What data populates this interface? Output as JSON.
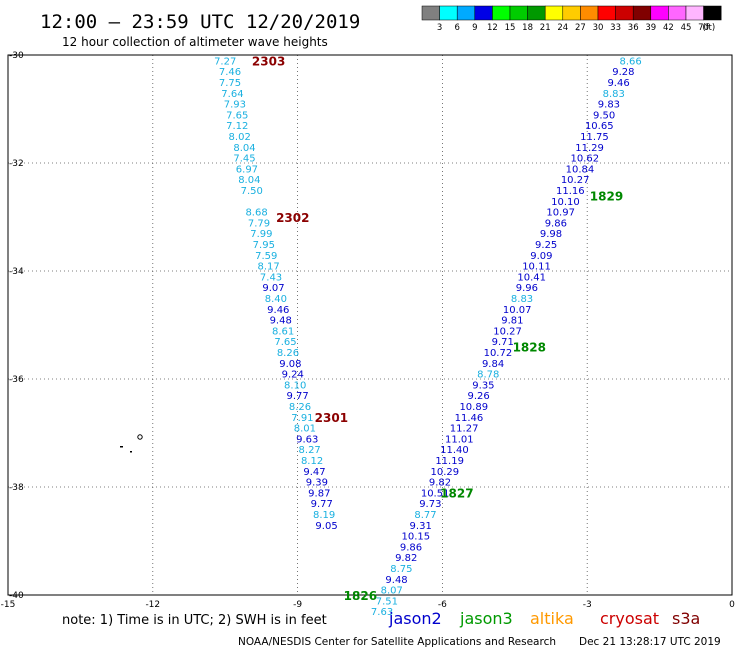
{
  "header": {
    "title": "12:00 – 23:59 UTC 12/20/2019",
    "subtitle": "12 hour collection of altimeter wave heights"
  },
  "colorbar": {
    "unit_label": "(ft)",
    "entries": [
      {
        "label": "3",
        "color": "#808080"
      },
      {
        "label": "6",
        "color": "#00ffff"
      },
      {
        "label": "9",
        "color": "#00aaff"
      },
      {
        "label": "12",
        "color": "#0000e6"
      },
      {
        "label": "15",
        "color": "#00ff00"
      },
      {
        "label": "18",
        "color": "#00cc00"
      },
      {
        "label": "21",
        "color": "#009900"
      },
      {
        "label": "24",
        "color": "#ffff00"
      },
      {
        "label": "27",
        "color": "#ffcc00"
      },
      {
        "label": "30",
        "color": "#ff8c00"
      },
      {
        "label": "33",
        "color": "#ff0000"
      },
      {
        "label": "36",
        "color": "#cc0000"
      },
      {
        "label": "39",
        "color": "#800000"
      },
      {
        "label": "42",
        "color": "#ff00ff"
      },
      {
        "label": "45",
        "color": "#ff66ff"
      },
      {
        "label": "70",
        "color": "#ffb6ff"
      },
      {
        "label": "",
        "color": "#000000"
      }
    ]
  },
  "legend": {
    "note": "note:  1) Time is in UTC;  2) SWH is in feet",
    "satellites": [
      {
        "name": "jason2",
        "color": "#0000cc"
      },
      {
        "name": "jason3",
        "color": "#009900"
      },
      {
        "name": "altika",
        "color": "#ff9900"
      },
      {
        "name": "cryosat",
        "color": "#cc0000"
      },
      {
        "name": "s3a",
        "color": "#800000"
      }
    ]
  },
  "footer": {
    "credit": "NOAA/NESDIS Center for Satellite Applications and Research",
    "timestamp": "Dec 21 13:28:17 UTC 2019"
  },
  "chart_data": {
    "type": "scatter",
    "title": "12:00 – 23:59 UTC 12/20/2019",
    "xlabel": "",
    "ylabel": "",
    "xlim": [
      -15,
      0
    ],
    "ylim": [
      -40,
      -30
    ],
    "x_ticks": [
      "-15",
      "-12",
      "-9",
      "-6",
      "-3",
      "0"
    ],
    "y_ticks": [
      "-30",
      "-32",
      "-34",
      "-36",
      "-38",
      "-40"
    ],
    "grid": true,
    "colors": {
      "light": "#1ab0e0",
      "dark": "#0000cc",
      "time_green": "#008800",
      "time_red": "#8b0000"
    },
    "tracks": [
      {
        "name": "s3a track",
        "points": [
          {
            "lat": -30.1,
            "lon": -10.5,
            "v": "7.27",
            "c": "light"
          },
          {
            "lat": -30.3,
            "lon": -10.4,
            "v": "7.46",
            "c": "light"
          },
          {
            "lat": -30.5,
            "lon": -10.4,
            "v": "7.75",
            "c": "light"
          },
          {
            "lat": -30.7,
            "lon": -10.35,
            "v": "7.64",
            "c": "light"
          },
          {
            "lat": -30.9,
            "lon": -10.3,
            "v": "7.93",
            "c": "light"
          },
          {
            "lat": -31.1,
            "lon": -10.25,
            "v": "7.65",
            "c": "light"
          },
          {
            "lat": -31.3,
            "lon": -10.25,
            "v": "7.12",
            "c": "light"
          },
          {
            "lat": -31.5,
            "lon": -10.2,
            "v": "8.02",
            "c": "light"
          },
          {
            "lat": -31.7,
            "lon": -10.1,
            "v": "8.04",
            "c": "light"
          },
          {
            "lat": -31.9,
            "lon": -10.1,
            "v": "7.45",
            "c": "light"
          },
          {
            "lat": -32.1,
            "lon": -10.05,
            "v": "6.97",
            "c": "light"
          },
          {
            "lat": -32.3,
            "lon": -10.0,
            "v": "8.04",
            "c": "light"
          },
          {
            "lat": -32.5,
            "lon": -9.95,
            "v": "7.50",
            "c": "light"
          },
          {
            "lat": -32.9,
            "lon": -9.85,
            "v": "8.68",
            "c": "light"
          },
          {
            "lat": -33.1,
            "lon": -9.8,
            "v": "7.79",
            "c": "light"
          },
          {
            "lat": -33.3,
            "lon": -9.75,
            "v": "7.99",
            "c": "light"
          },
          {
            "lat": -33.5,
            "lon": -9.7,
            "v": "7.95",
            "c": "light"
          },
          {
            "lat": -33.7,
            "lon": -9.65,
            "v": "7.59",
            "c": "light"
          },
          {
            "lat": -33.9,
            "lon": -9.6,
            "v": "8.17",
            "c": "light"
          },
          {
            "lat": -34.1,
            "lon": -9.55,
            "v": "7.43",
            "c": "light"
          },
          {
            "lat": -34.3,
            "lon": -9.5,
            "v": "9.07",
            "c": "dark"
          },
          {
            "lat": -34.5,
            "lon": -9.45,
            "v": "8.40",
            "c": "light"
          },
          {
            "lat": -34.7,
            "lon": -9.4,
            "v": "9.46",
            "c": "dark"
          },
          {
            "lat": -34.9,
            "lon": -9.35,
            "v": "9.48",
            "c": "dark"
          },
          {
            "lat": -35.1,
            "lon": -9.3,
            "v": "8.61",
            "c": "light"
          },
          {
            "lat": -35.3,
            "lon": -9.25,
            "v": "7.65",
            "c": "light"
          },
          {
            "lat": -35.5,
            "lon": -9.2,
            "v": "8.26",
            "c": "light"
          },
          {
            "lat": -35.7,
            "lon": -9.15,
            "v": "9.08",
            "c": "dark"
          },
          {
            "lat": -35.9,
            "lon": -9.1,
            "v": "9.24",
            "c": "dark"
          },
          {
            "lat": -36.1,
            "lon": -9.05,
            "v": "8.10",
            "c": "light"
          },
          {
            "lat": -36.3,
            "lon": -9.0,
            "v": "9.77",
            "c": "dark"
          },
          {
            "lat": -36.5,
            "lon": -8.95,
            "v": "8.26",
            "c": "light"
          },
          {
            "lat": -36.7,
            "lon": -8.9,
            "v": "7.91",
            "c": "light"
          },
          {
            "lat": -36.9,
            "lon": -8.85,
            "v": "8.01",
            "c": "light"
          },
          {
            "lat": -37.1,
            "lon": -8.8,
            "v": "9.63",
            "c": "dark"
          },
          {
            "lat": -37.3,
            "lon": -8.75,
            "v": "8.27",
            "c": "light"
          },
          {
            "lat": -37.5,
            "lon": -8.7,
            "v": "8.12",
            "c": "light"
          },
          {
            "lat": -37.7,
            "lon": -8.65,
            "v": "9.47",
            "c": "dark"
          },
          {
            "lat": -37.9,
            "lon": -8.6,
            "v": "9.39",
            "c": "dark"
          },
          {
            "lat": -38.1,
            "lon": -8.55,
            "v": "9.87",
            "c": "dark"
          },
          {
            "lat": -38.3,
            "lon": -8.5,
            "v": "9.77",
            "c": "dark"
          },
          {
            "lat": -38.5,
            "lon": -8.45,
            "v": "8.19",
            "c": "light"
          },
          {
            "lat": -38.7,
            "lon": -8.4,
            "v": "9.05",
            "c": "dark"
          }
        ]
      },
      {
        "name": "jason track",
        "points": [
          {
            "lat": -30.1,
            "lon": -2.1,
            "v": "8.66",
            "c": "light"
          },
          {
            "lat": -30.3,
            "lon": -2.25,
            "v": "9.28",
            "c": "dark"
          },
          {
            "lat": -30.5,
            "lon": -2.35,
            "v": "9.46",
            "c": "dark"
          },
          {
            "lat": -30.7,
            "lon": -2.45,
            "v": "8.83",
            "c": "light"
          },
          {
            "lat": -30.9,
            "lon": -2.55,
            "v": "9.83",
            "c": "dark"
          },
          {
            "lat": -31.1,
            "lon": -2.65,
            "v": "9.50",
            "c": "dark"
          },
          {
            "lat": -31.3,
            "lon": -2.75,
            "v": "10.65",
            "c": "dark"
          },
          {
            "lat": -31.5,
            "lon": -2.85,
            "v": "11.75",
            "c": "dark"
          },
          {
            "lat": -31.7,
            "lon": -2.95,
            "v": "11.29",
            "c": "dark"
          },
          {
            "lat": -31.9,
            "lon": -3.05,
            "v": "10.62",
            "c": "dark"
          },
          {
            "lat": -32.1,
            "lon": -3.15,
            "v": "10.84",
            "c": "dark"
          },
          {
            "lat": -32.3,
            "lon": -3.25,
            "v": "10.27",
            "c": "dark"
          },
          {
            "lat": -32.5,
            "lon": -3.35,
            "v": "11.16",
            "c": "dark"
          },
          {
            "lat": -32.7,
            "lon": -3.45,
            "v": "10.10",
            "c": "dark"
          },
          {
            "lat": -32.9,
            "lon": -3.55,
            "v": "10.97",
            "c": "dark"
          },
          {
            "lat": -33.1,
            "lon": -3.65,
            "v": "9.86",
            "c": "dark"
          },
          {
            "lat": -33.3,
            "lon": -3.75,
            "v": "9.98",
            "c": "dark"
          },
          {
            "lat": -33.5,
            "lon": -3.85,
            "v": "9.25",
            "c": "dark"
          },
          {
            "lat": -33.7,
            "lon": -3.95,
            "v": "9.09",
            "c": "dark"
          },
          {
            "lat": -33.9,
            "lon": -4.05,
            "v": "10.11",
            "c": "dark"
          },
          {
            "lat": -34.1,
            "lon": -4.15,
            "v": "10.41",
            "c": "dark"
          },
          {
            "lat": -34.3,
            "lon": -4.25,
            "v": "9.96",
            "c": "dark"
          },
          {
            "lat": -34.5,
            "lon": -4.35,
            "v": "8.83",
            "c": "light"
          },
          {
            "lat": -34.7,
            "lon": -4.45,
            "v": "10.07",
            "c": "dark"
          },
          {
            "lat": -34.9,
            "lon": -4.55,
            "v": "9.81",
            "c": "dark"
          },
          {
            "lat": -35.1,
            "lon": -4.65,
            "v": "10.27",
            "c": "dark"
          },
          {
            "lat": -35.3,
            "lon": -4.75,
            "v": "9.71",
            "c": "dark"
          },
          {
            "lat": -35.5,
            "lon": -4.85,
            "v": "10.72",
            "c": "dark"
          },
          {
            "lat": -35.7,
            "lon": -4.95,
            "v": "9.84",
            "c": "dark"
          },
          {
            "lat": -35.9,
            "lon": -5.05,
            "v": "8.78",
            "c": "light"
          },
          {
            "lat": -36.1,
            "lon": -5.15,
            "v": "9.35",
            "c": "dark"
          },
          {
            "lat": -36.3,
            "lon": -5.25,
            "v": "9.26",
            "c": "dark"
          },
          {
            "lat": -36.5,
            "lon": -5.35,
            "v": "10.89",
            "c": "dark"
          },
          {
            "lat": -36.7,
            "lon": -5.45,
            "v": "11.46",
            "c": "dark"
          },
          {
            "lat": -36.9,
            "lon": -5.55,
            "v": "11.27",
            "c": "dark"
          },
          {
            "lat": -37.1,
            "lon": -5.65,
            "v": "11.01",
            "c": "dark"
          },
          {
            "lat": -37.3,
            "lon": -5.75,
            "v": "11.40",
            "c": "dark"
          },
          {
            "lat": -37.5,
            "lon": -5.85,
            "v": "11.19",
            "c": "dark"
          },
          {
            "lat": -37.7,
            "lon": -5.95,
            "v": "10.29",
            "c": "dark"
          },
          {
            "lat": -37.9,
            "lon": -6.05,
            "v": "9.82",
            "c": "dark"
          },
          {
            "lat": -38.1,
            "lon": -6.15,
            "v": "10.51",
            "c": "dark"
          },
          {
            "lat": -38.3,
            "lon": -6.25,
            "v": "9.73",
            "c": "dark"
          },
          {
            "lat": -38.5,
            "lon": -6.35,
            "v": "8.77",
            "c": "light"
          },
          {
            "lat": -38.7,
            "lon": -6.45,
            "v": "9.31",
            "c": "dark"
          },
          {
            "lat": -38.9,
            "lon": -6.55,
            "v": "10.15",
            "c": "dark"
          },
          {
            "lat": -39.1,
            "lon": -6.65,
            "v": "9.86",
            "c": "dark"
          },
          {
            "lat": -39.3,
            "lon": -6.75,
            "v": "9.82",
            "c": "dark"
          },
          {
            "lat": -39.5,
            "lon": -6.85,
            "v": "8.75",
            "c": "light"
          },
          {
            "lat": -39.7,
            "lon": -6.95,
            "v": "9.48",
            "c": "dark"
          },
          {
            "lat": -39.9,
            "lon": -7.05,
            "v": "8.07",
            "c": "light"
          },
          {
            "lat": -40.1,
            "lon": -7.15,
            "v": "7.51",
            "c": "light"
          },
          {
            "lat": -40.3,
            "lon": -7.25,
            "v": "7.63",
            "c": "light"
          }
        ]
      }
    ],
    "time_labels": [
      {
        "t": "2303",
        "lat": -30.1,
        "lon": -9.6,
        "c": "time_red"
      },
      {
        "t": "2302",
        "lat": -33.0,
        "lon": -9.1,
        "c": "time_red"
      },
      {
        "t": "2301",
        "lat": -36.7,
        "lon": -8.3,
        "c": "time_red"
      },
      {
        "t": "1829",
        "lat": -32.6,
        "lon": -2.6,
        "c": "time_green"
      },
      {
        "t": "1828",
        "lat": -35.4,
        "lon": -4.2,
        "c": "time_green"
      },
      {
        "t": "1827",
        "lat": -38.1,
        "lon": -5.7,
        "c": "time_green"
      },
      {
        "t": "1826",
        "lat": -40.0,
        "lon": -7.7,
        "c": "time_green"
      }
    ]
  }
}
